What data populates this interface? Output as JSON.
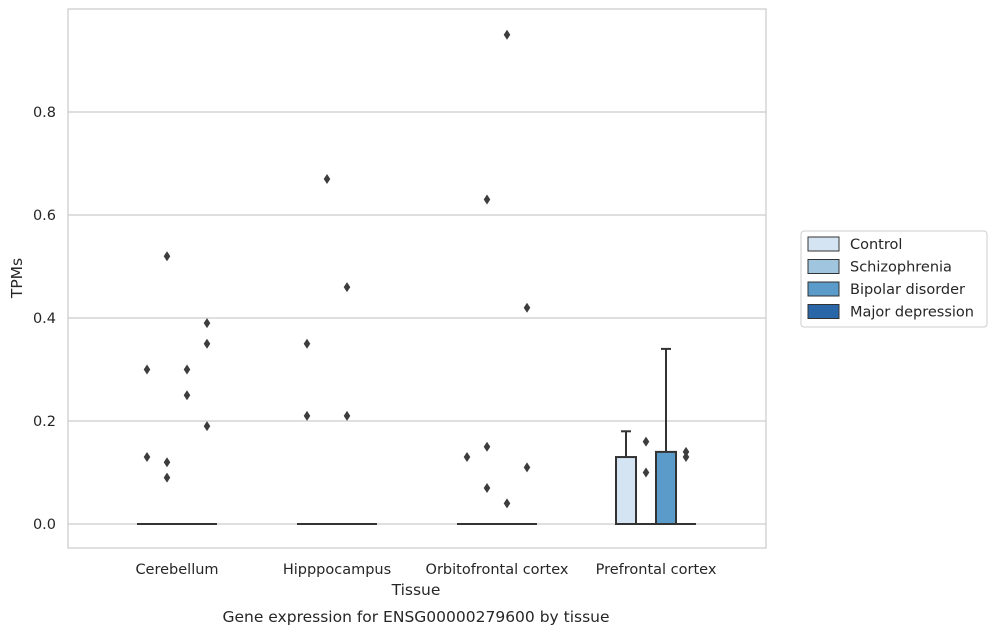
{
  "caption": "Gene expression for ENSG00000279600 by tissue",
  "colors": {
    "Control": "#d4e4f2",
    "Schizophrenia": "#9fc5df",
    "Bipolar disorder": "#5a9bc9",
    "Major depression": "#2967a8",
    "grid": "#cccccc",
    "axes": "#cccccc",
    "mark_edge": "#333333"
  },
  "chart_data": {
    "type": "bar",
    "xlabel": "Tissue",
    "ylabel": "TPMs",
    "ylim": [
      -0.045,
      0.99
    ],
    "yticks": [
      0.0,
      0.2,
      0.4,
      0.6,
      0.8
    ],
    "ytick_labels": [
      "0.0",
      "0.2",
      "0.4",
      "0.6",
      "0.8"
    ],
    "grid": "horizontal",
    "legend_position": "outside-right",
    "categories": [
      "Cerebellum",
      "Hipppocampus",
      "Orbitofrontal cortex",
      "Prefrontal cortex"
    ],
    "series": [
      {
        "name": "Control",
        "values": [
          0.0,
          0.0,
          0.0,
          0.13
        ],
        "error_upper": [
          null,
          null,
          null,
          0.18
        ]
      },
      {
        "name": "Schizophrenia",
        "values": [
          0.0,
          0.0,
          0.0,
          0.0
        ],
        "error_upper": [
          null,
          null,
          null,
          null
        ]
      },
      {
        "name": "Bipolar disorder",
        "values": [
          0.0,
          0.0,
          0.0,
          0.14
        ],
        "error_upper": [
          null,
          null,
          null,
          0.34
        ]
      },
      {
        "name": "Major depression",
        "values": [
          0.0,
          0.0,
          0.0,
          0.0
        ],
        "error_upper": [
          null,
          null,
          null,
          null
        ]
      }
    ],
    "outliers": [
      {
        "category": "Cerebellum",
        "series": "Control",
        "values": [
          0.3,
          0.13
        ]
      },
      {
        "category": "Cerebellum",
        "series": "Schizophrenia",
        "values": [
          0.52,
          0.12,
          0.09
        ]
      },
      {
        "category": "Cerebellum",
        "series": "Bipolar disorder",
        "values": [
          0.3,
          0.25
        ]
      },
      {
        "category": "Cerebellum",
        "series": "Major depression",
        "values": [
          0.39,
          0.35,
          0.19
        ]
      },
      {
        "category": "Hipppocampus",
        "series": "Control",
        "values": [
          0.35,
          0.21
        ]
      },
      {
        "category": "Hipppocampus",
        "series": "Schizophrenia",
        "values": [
          0.67
        ]
      },
      {
        "category": "Hipppocampus",
        "series": "Bipolar disorder",
        "values": [
          0.46,
          0.21
        ]
      },
      {
        "category": "Orbitofrontal cortex",
        "series": "Control",
        "values": [
          0.13
        ]
      },
      {
        "category": "Orbitofrontal cortex",
        "series": "Schizophrenia",
        "values": [
          0.63,
          0.07,
          0.15
        ]
      },
      {
        "category": "Orbitofrontal cortex",
        "series": "Bipolar disorder",
        "values": [
          0.95,
          0.04
        ]
      },
      {
        "category": "Orbitofrontal cortex",
        "series": "Major depression",
        "values": [
          0.42,
          0.11
        ]
      },
      {
        "category": "Prefrontal cortex",
        "series": "Schizophrenia",
        "values": [
          0.16,
          0.1
        ]
      },
      {
        "category": "Prefrontal cortex",
        "series": "Major depression",
        "values": [
          0.14,
          0.13
        ]
      }
    ]
  }
}
